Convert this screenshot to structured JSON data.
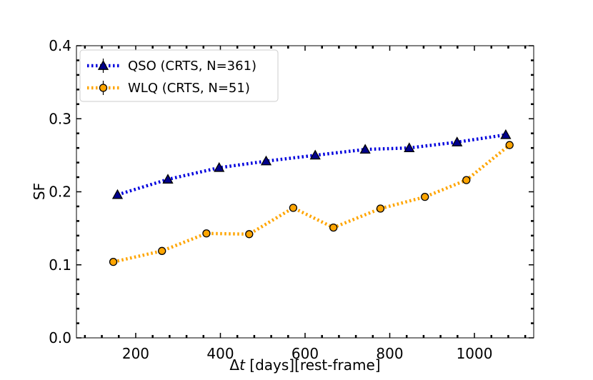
{
  "chart_data": {
    "type": "line",
    "title": "",
    "xlabel_prefix": "Δ",
    "xlabel_var": "t",
    "xlabel_rest": " [days][rest-frame]",
    "ylabel": "SF",
    "xlim": [
      60,
      1140
    ],
    "ylim": [
      0.0,
      0.4
    ],
    "xticks": [
      200,
      400,
      600,
      800,
      1000
    ],
    "yticks": [
      0.0,
      0.1,
      0.2,
      0.3,
      0.4
    ],
    "xtick_labels": [
      "200",
      "400",
      "600",
      "800",
      "1000"
    ],
    "ytick_labels": [
      "0.0",
      "0.1",
      "0.2",
      "0.3",
      "0.4"
    ],
    "legend_position": "top-left",
    "series": [
      {
        "name": "QSO (CRTS, N=361)",
        "color": "#0000dd",
        "marker": "triangle",
        "marker_color": "#00008b",
        "x": [
          157,
          276,
          397,
          508,
          624,
          742,
          846,
          959,
          1074
        ],
        "y": [
          0.196,
          0.217,
          0.233,
          0.242,
          0.25,
          0.258,
          0.26,
          0.268,
          0.278
        ]
      },
      {
        "name": "WLQ (CRTS, N=51)",
        "color": "#ffa500",
        "marker": "circle",
        "marker_color": "#ffa500",
        "x": [
          147,
          262,
          367,
          468,
          572,
          667,
          778,
          883,
          981,
          1083
        ],
        "y": [
          0.104,
          0.119,
          0.143,
          0.142,
          0.178,
          0.151,
          0.177,
          0.193,
          0.216,
          0.264
        ]
      }
    ]
  }
}
